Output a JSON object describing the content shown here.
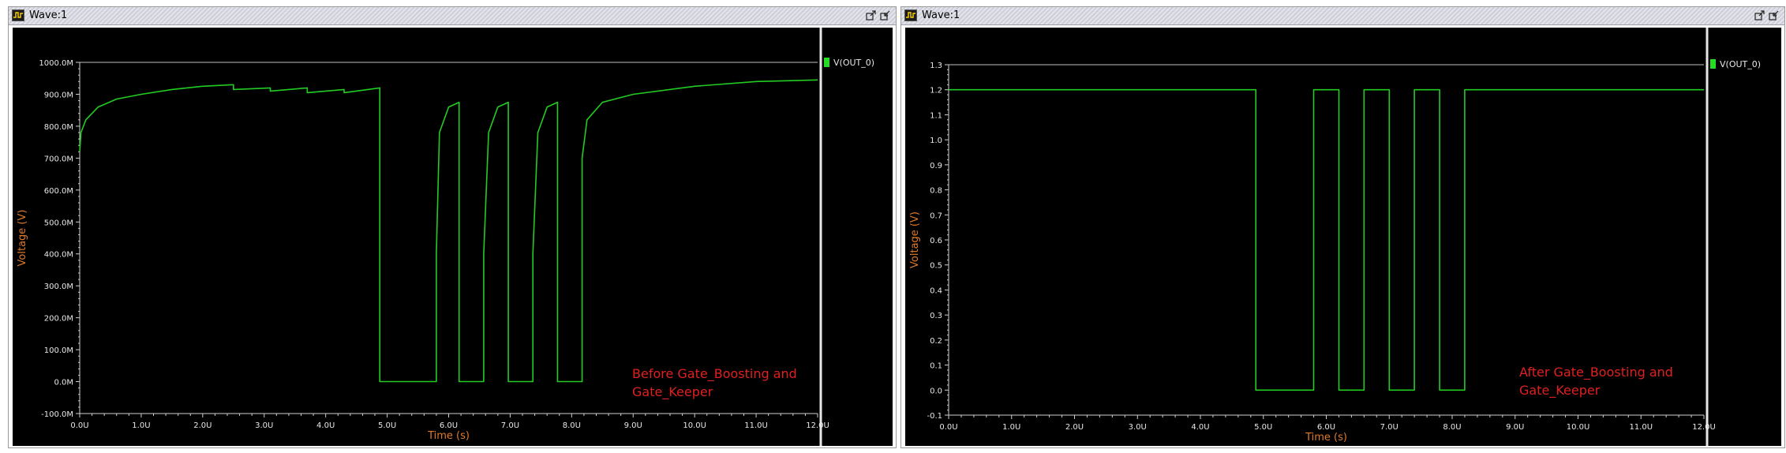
{
  "windows": [
    {
      "title": "Wave:1",
      "legend": "V(OUT_0)",
      "annotation": [
        "Before Gate_Boosting and",
        "Gate_Keeper"
      ],
      "colors": {
        "trace": "#22cc22",
        "axis_label": "#e07a2a",
        "annotation": "#e02020",
        "legend_marker": "#22dd22"
      }
    },
    {
      "title": "Wave:1",
      "legend": "V(OUT_0)",
      "annotation": [
        "After Gate_Boosting and",
        "Gate_Keeper"
      ],
      "colors": {
        "trace": "#22cc22",
        "axis_label": "#e07a2a",
        "annotation": "#e02020",
        "legend_marker": "#22dd22"
      }
    }
  ],
  "chart_data": [
    {
      "type": "line",
      "xlabel": "Time (s)",
      "ylabel": "Voltage (V)",
      "xlim": [
        0,
        12
      ],
      "ylim": [
        -100,
        1000
      ],
      "x_ticks": [
        "0.0U",
        "1.0U",
        "2.0U",
        "3.0U",
        "4.0U",
        "5.0U",
        "6.0U",
        "7.0U",
        "8.0U",
        "9.0U",
        "10.0U",
        "11.0U",
        "12.0U"
      ],
      "y_ticks": [
        "-100.0M",
        "0.0M",
        "100.0M",
        "200.0M",
        "300.0M",
        "400.0M",
        "500.0M",
        "600.0M",
        "700.0M",
        "800.0M",
        "900.0M",
        "1000.0M"
      ],
      "series": [
        {
          "name": "V(OUT_0)",
          "x": [
            0.0,
            0.02,
            0.1,
            0.3,
            0.6,
            1.0,
            1.5,
            2.0,
            2.5,
            2.5,
            3.1,
            3.1,
            3.7,
            3.7,
            4.3,
            4.3,
            4.88,
            4.88,
            5.8,
            5.8,
            5.85,
            6.0,
            6.17,
            6.17,
            6.2,
            6.57,
            6.57,
            6.65,
            6.8,
            6.97,
            6.97,
            7.0,
            7.37,
            7.37,
            7.45,
            7.6,
            7.77,
            7.77,
            7.8,
            8.17,
            8.17,
            8.25,
            8.5,
            9.0,
            10.0,
            11.0,
            12.0
          ],
          "y": [
            720,
            780,
            820,
            860,
            885,
            900,
            915,
            925,
            930,
            915,
            920,
            910,
            920,
            905,
            915,
            905,
            920,
            0,
            0,
            400,
            780,
            860,
            875,
            0,
            0,
            0,
            400,
            780,
            860,
            875,
            0,
            0,
            0,
            400,
            780,
            860,
            875,
            0,
            0,
            0,
            700,
            820,
            875,
            900,
            925,
            940,
            945
          ]
        }
      ]
    },
    {
      "type": "line",
      "xlabel": "Time (s)",
      "ylabel": "Voltage (V)",
      "xlim": [
        0,
        12
      ],
      "ylim": [
        -0.1,
        1.3
      ],
      "x_ticks": [
        "0.0U",
        "1.0U",
        "2.0U",
        "3.0U",
        "4.0U",
        "5.0U",
        "6.0U",
        "7.0U",
        "8.0U",
        "9.0U",
        "10.0U",
        "11.0U",
        "12.0U"
      ],
      "y_ticks": [
        "-0.1",
        "0.0",
        "0.1",
        "0.2",
        "0.3",
        "0.4",
        "0.5",
        "0.6",
        "0.7",
        "0.8",
        "0.9",
        "1.0",
        "1.1",
        "1.2",
        "1.3"
      ],
      "series": [
        {
          "name": "V(OUT_0)",
          "x": [
            0.0,
            4.88,
            4.88,
            5.8,
            5.8,
            6.2,
            6.2,
            6.6,
            6.6,
            7.0,
            7.0,
            7.4,
            7.4,
            7.8,
            7.8,
            8.2,
            8.2,
            12.0
          ],
          "y": [
            1.2,
            1.2,
            0.0,
            0.0,
            1.2,
            1.2,
            0.0,
            0.0,
            1.2,
            1.2,
            0.0,
            0.0,
            1.2,
            1.2,
            0.0,
            0.0,
            1.2,
            1.2
          ]
        }
      ]
    }
  ]
}
